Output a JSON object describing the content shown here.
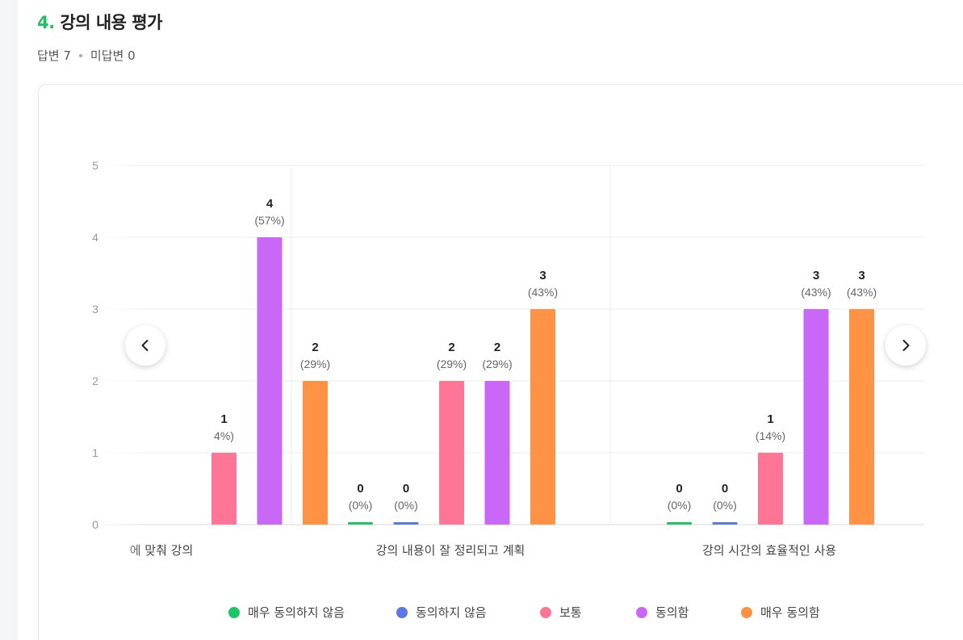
{
  "question": {
    "number": "4.",
    "title": "강의 내용 평가"
  },
  "summary": {
    "answered": "답변 7",
    "unanswered": "미답변 0"
  },
  "chart_data": {
    "type": "bar",
    "ylim": [
      0,
      5
    ],
    "yticks": [
      "0",
      "1",
      "2",
      "3",
      "4",
      "5"
    ],
    "grid": true,
    "legend_position": "bottom",
    "categories": [
      "에 맞춰 강의",
      "강의 내용이 잘 정리되고 계획",
      "강의 시간의 효율적인 사용"
    ],
    "series": [
      {
        "name": "매우 동의하지 않음",
        "color": "#1dc665",
        "values": [
          null,
          0,
          0
        ],
        "labels": [
          "",
          "0",
          "0"
        ],
        "pcts": [
          "",
          "(0%)",
          "(0%)"
        ]
      },
      {
        "name": "동의하지 않음",
        "color": "#5b78e5",
        "values": [
          null,
          0,
          0
        ],
        "labels": [
          "",
          "0",
          "0"
        ],
        "pcts": [
          "",
          "(0%)",
          "(0%)"
        ]
      },
      {
        "name": "보통",
        "color": "#ff7596",
        "values": [
          1,
          2,
          1
        ],
        "labels": [
          "1",
          "2",
          "1"
        ],
        "pcts": [
          "4%)",
          "(29%)",
          "(14%)"
        ]
      },
      {
        "name": "동의함",
        "color": "#c967f7",
        "values": [
          4,
          2,
          3
        ],
        "labels": [
          "4",
          "2",
          "3"
        ],
        "pcts": [
          "(57%)",
          "(29%)",
          "(43%)"
        ]
      },
      {
        "name": "매우 동의함",
        "color": "#ff9245",
        "values": [
          2,
          3,
          3
        ],
        "labels": [
          "2",
          "3",
          "3"
        ],
        "pcts": [
          "(29%)",
          "(43%)",
          "(43%)"
        ]
      }
    ]
  },
  "colors": {
    "accent": "#20c063"
  },
  "icons": {
    "prev": "chevron-left-icon",
    "next": "chevron-right-icon"
  }
}
